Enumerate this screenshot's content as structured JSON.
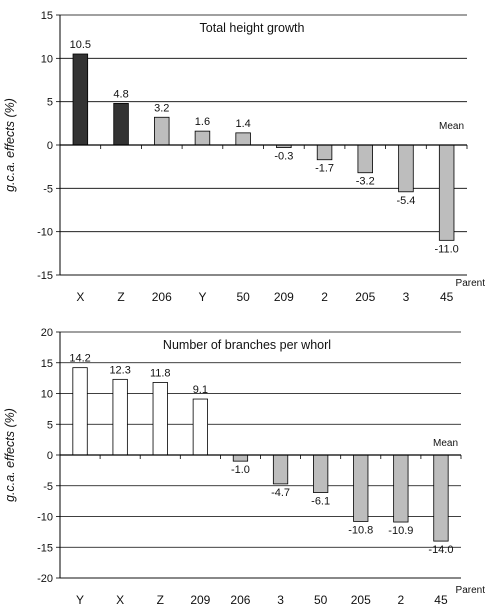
{
  "chart_data": [
    {
      "type": "bar",
      "title": "Total height growth",
      "ylabel": "g.c.a. effects (%)",
      "xlabel": "Parent",
      "reference_label": "Mean",
      "ylim": [
        -15,
        15
      ],
      "yticks": [
        -15,
        -10,
        -5,
        0,
        5,
        10,
        15
      ],
      "grid": true,
      "categories": [
        "X",
        "Z",
        "206",
        "Y",
        "50",
        "209",
        "2",
        "205",
        "3",
        "45"
      ],
      "values": [
        10.5,
        4.8,
        3.2,
        1.6,
        1.4,
        -0.3,
        -1.7,
        -3.2,
        -5.4,
        -11.0
      ],
      "value_labels": [
        "10.5",
        "4.8",
        "3.2",
        "1.6",
        "1.4",
        "-0.3",
        "-1.7",
        "-3.2",
        "-5.4",
        "-11.0"
      ],
      "bar_colors": [
        "#333333",
        "#333333",
        "#bdbdbd",
        "#bdbdbd",
        "#bdbdbd",
        "#bdbdbd",
        "#bdbdbd",
        "#bdbdbd",
        "#bdbdbd",
        "#bdbdbd"
      ]
    },
    {
      "type": "bar",
      "title": "Number of branches per whorl",
      "ylabel": "g.c.a. effects (%)",
      "xlabel": "Parent",
      "reference_label": "Mean",
      "ylim": [
        -20,
        20
      ],
      "yticks": [
        -20,
        -15,
        -10,
        -5,
        0,
        5,
        10,
        15,
        20
      ],
      "grid": true,
      "categories": [
        "Y",
        "X",
        "Z",
        "209",
        "206",
        "3",
        "50",
        "205",
        "2",
        "45"
      ],
      "values": [
        14.2,
        12.3,
        11.8,
        9.1,
        -1.0,
        -4.7,
        -6.1,
        -10.8,
        -10.9,
        -14.0
      ],
      "value_labels": [
        "14.2",
        "12.3",
        "11.8",
        "9.1",
        "-1.0",
        "-4.7",
        "-6.1",
        "-10.8",
        "-10.9",
        "-14.0"
      ],
      "bar_colors": [
        "#ffffff",
        "#ffffff",
        "#ffffff",
        "#ffffff",
        "#bdbdbd",
        "#bdbdbd",
        "#bdbdbd",
        "#bdbdbd",
        "#bdbdbd",
        "#bdbdbd"
      ]
    }
  ]
}
